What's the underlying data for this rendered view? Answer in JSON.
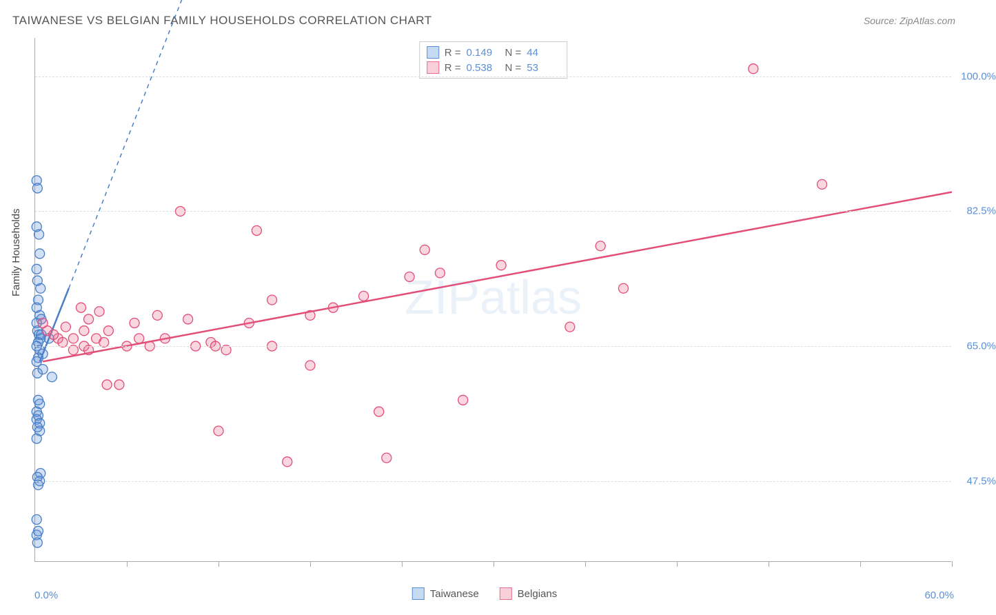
{
  "title": "TAIWANESE VS BELGIAN FAMILY HOUSEHOLDS CORRELATION CHART",
  "source": "Source: ZipAtlas.com",
  "watermark": "ZIPatlas",
  "yaxis_title": "Family Households",
  "chart": {
    "type": "scatter",
    "background_color": "#ffffff",
    "grid_color": "#dddddd",
    "axis_color": "#aaaaaa",
    "xlim": [
      0,
      60
    ],
    "ylim": [
      37,
      105
    ],
    "xticks": [
      0,
      6,
      12,
      18,
      24,
      30,
      36,
      42,
      48,
      54,
      60
    ],
    "yticks": [
      47.5,
      65.0,
      82.5,
      100.0
    ],
    "ytick_labels": [
      "47.5%",
      "65.0%",
      "82.5%",
      "100.0%"
    ],
    "xaxis_min_label": "0.0%",
    "xaxis_max_label": "60.0%",
    "tick_label_color": "#5a8fd6",
    "tick_label_fontsize": 15,
    "marker_radius": 7,
    "marker_stroke_width": 1.3,
    "marker_fill_opacity": 0.28,
    "series": [
      {
        "name": "Taiwanese",
        "color": "#5a8fd6",
        "stroke": "#4a7fc6",
        "R": "0.149",
        "N": "44",
        "trend_line": {
          "x1": 0.3,
          "y1": 63.0,
          "x2": 2.2,
          "y2": 72.5,
          "dashed_ext": {
            "x2": 10.0,
            "y2": 112.0
          }
        },
        "points": [
          [
            0.1,
            86.5
          ],
          [
            0.15,
            85.5
          ],
          [
            0.1,
            80.5
          ],
          [
            0.25,
            79.5
          ],
          [
            0.3,
            77.0
          ],
          [
            0.1,
            75.0
          ],
          [
            0.15,
            73.5
          ],
          [
            0.35,
            72.5
          ],
          [
            0.2,
            71.0
          ],
          [
            0.1,
            70.0
          ],
          [
            0.3,
            69.0
          ],
          [
            0.4,
            68.5
          ],
          [
            0.1,
            68.0
          ],
          [
            0.15,
            67.0
          ],
          [
            0.25,
            66.5
          ],
          [
            0.35,
            66.0
          ],
          [
            0.4,
            66.5
          ],
          [
            0.9,
            66.0
          ],
          [
            0.2,
            65.5
          ],
          [
            0.1,
            65.0
          ],
          [
            0.3,
            64.5
          ],
          [
            0.5,
            64.0
          ],
          [
            0.2,
            63.5
          ],
          [
            0.1,
            63.0
          ],
          [
            0.5,
            62.0
          ],
          [
            0.15,
            61.5
          ],
          [
            1.1,
            61.0
          ],
          [
            0.2,
            58.0
          ],
          [
            0.3,
            57.5
          ],
          [
            0.1,
            56.5
          ],
          [
            0.2,
            56.0
          ],
          [
            0.1,
            55.5
          ],
          [
            0.3,
            55.0
          ],
          [
            0.15,
            54.5
          ],
          [
            0.3,
            54.0
          ],
          [
            0.1,
            53.0
          ],
          [
            0.35,
            48.5
          ],
          [
            0.15,
            48.0
          ],
          [
            0.3,
            47.5
          ],
          [
            0.2,
            47.0
          ],
          [
            0.1,
            42.5
          ],
          [
            0.2,
            41.0
          ],
          [
            0.1,
            40.5
          ],
          [
            0.15,
            39.5
          ]
        ]
      },
      {
        "name": "Belgians",
        "color": "#ec6a8f",
        "stroke": "#e24e78",
        "R": "0.538",
        "N": "53",
        "trend_line": {
          "x1": 0.5,
          "y1": 63.0,
          "x2": 60.0,
          "y2": 85.0
        },
        "points": [
          [
            0.8,
            67.0
          ],
          [
            1.5,
            66.0
          ],
          [
            1.8,
            65.5
          ],
          [
            2.0,
            67.5
          ],
          [
            2.5,
            66.0
          ],
          [
            2.5,
            64.5
          ],
          [
            3.0,
            70.0
          ],
          [
            3.2,
            67.0
          ],
          [
            3.2,
            65.0
          ],
          [
            3.5,
            64.5
          ],
          [
            3.5,
            68.5
          ],
          [
            4.0,
            66.0
          ],
          [
            4.2,
            69.5
          ],
          [
            4.5,
            65.5
          ],
          [
            4.8,
            67.0
          ],
          [
            4.7,
            60.0
          ],
          [
            5.5,
            60.0
          ],
          [
            6.0,
            65.0
          ],
          [
            6.5,
            68.0
          ],
          [
            6.8,
            66.0
          ],
          [
            7.5,
            65.0
          ],
          [
            8.0,
            69.0
          ],
          [
            8.5,
            66.0
          ],
          [
            9.5,
            82.5
          ],
          [
            10.0,
            68.5
          ],
          [
            10.5,
            65.0
          ],
          [
            11.5,
            65.5
          ],
          [
            11.8,
            65.0
          ],
          [
            12.5,
            64.5
          ],
          [
            12.0,
            54.0
          ],
          [
            14.0,
            68.0
          ],
          [
            14.5,
            80.0
          ],
          [
            15.5,
            65.0
          ],
          [
            15.5,
            71.0
          ],
          [
            16.5,
            50.0
          ],
          [
            18.0,
            69.0
          ],
          [
            18.0,
            62.5
          ],
          [
            19.5,
            70.0
          ],
          [
            21.5,
            71.5
          ],
          [
            22.5,
            56.5
          ],
          [
            23.0,
            50.5
          ],
          [
            24.5,
            74.0
          ],
          [
            25.5,
            77.5
          ],
          [
            26.5,
            74.5
          ],
          [
            28.0,
            58.0
          ],
          [
            30.5,
            75.5
          ],
          [
            35.0,
            67.5
          ],
          [
            37.0,
            78.0
          ],
          [
            38.5,
            72.5
          ],
          [
            47.0,
            101.0
          ],
          [
            51.5,
            86.0
          ],
          [
            0.5,
            68.0
          ],
          [
            1.2,
            66.5
          ]
        ]
      }
    ]
  },
  "stat_legend": {
    "rows": [
      {
        "swatch_fill": "#c5dbf2",
        "swatch_border": "#5a8fd6",
        "R_label": "R =",
        "R_value": "0.149",
        "N_label": "N =",
        "N_value": "44"
      },
      {
        "swatch_fill": "#f8d0da",
        "swatch_border": "#ec6a8f",
        "R_label": "R =",
        "R_value": "0.538",
        "N_label": "N =",
        "N_value": "53"
      }
    ]
  },
  "bottom_legend": {
    "items": [
      {
        "swatch_fill": "#c5dbf2",
        "swatch_border": "#5a8fd6",
        "label": "Taiwanese"
      },
      {
        "swatch_fill": "#f8d0da",
        "swatch_border": "#ec6a8f",
        "label": "Belgians"
      }
    ]
  }
}
